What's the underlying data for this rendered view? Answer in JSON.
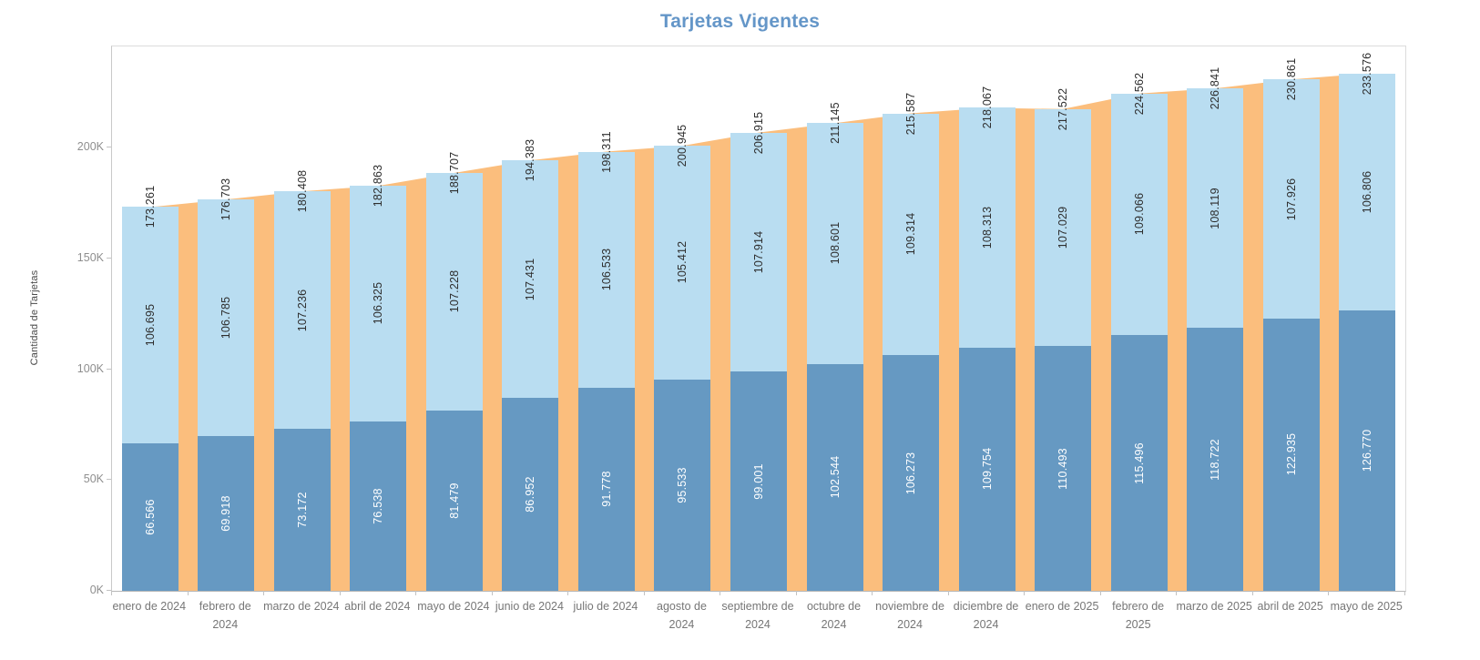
{
  "title": "Tarjetas Vigentes",
  "chart_data": {
    "type": "bar",
    "subtype": "stacked-bars-with-total-area-behind",
    "title": "Tarjetas Vigentes",
    "xlabel": "",
    "ylabel": "Cantidad de Tarjetas",
    "ylim": [
      0,
      245800
    ],
    "grid": false,
    "legend": "none",
    "number_format": "thousands-dot",
    "y_ticks": [
      {
        "label": "0K",
        "value": 0
      },
      {
        "label": "50K",
        "value": 50000
      },
      {
        "label": "100K",
        "value": 100000
      },
      {
        "label": "150K",
        "value": 150000
      },
      {
        "label": "200K",
        "value": 200000
      }
    ],
    "categories": [
      "enero de 2024",
      "febrero de 2024",
      "marzo de 2024",
      "abril de 2024",
      "mayo de 2024",
      "junio de 2024",
      "julio de 2024",
      "agosto de 2024",
      "septiembre de 2024",
      "octubre de 2024",
      "noviembre de 2024",
      "diciembre de 2024",
      "enero de 2025",
      "febrero de 2025",
      "marzo de 2025",
      "abril de 2025",
      "mayo de 2025"
    ],
    "series": [
      {
        "name": "bottom-segment",
        "role": "stacked-bar-bottom",
        "color": "#6699C2",
        "label_color": "#FFFFFF",
        "values": [
          66566,
          69918,
          73172,
          76538,
          81479,
          86952,
          91778,
          95533,
          99001,
          102544,
          106273,
          109754,
          110493,
          115496,
          118722,
          122935,
          126770
        ],
        "labels": [
          "66.566",
          "69.918",
          "73.172",
          "76.538",
          "81.479",
          "86.952",
          "91.778",
          "95.533",
          "99.001",
          "102.544",
          "106.273",
          "109.754",
          "110.493",
          "115.496",
          "118.722",
          "122.935",
          "126.770"
        ]
      },
      {
        "name": "top-segment",
        "role": "stacked-bar-top",
        "color": "#B9DDF1",
        "label_color": "#2E2E2E",
        "values": [
          106695,
          106785,
          107236,
          106325,
          107228,
          107431,
          106533,
          105412,
          107914,
          108601,
          109314,
          108313,
          107029,
          109066,
          108119,
          107926,
          106806
        ],
        "labels": [
          "106.695",
          "106.785",
          "107.236",
          "106.325",
          "107.228",
          "107.431",
          "106.533",
          "105.412",
          "107.914",
          "108.601",
          "109.314",
          "108.313",
          "107.029",
          "109.066",
          "108.119",
          "107.926",
          "106.806"
        ]
      },
      {
        "name": "total",
        "role": "area-behind-bars",
        "color": "#FBBE7D",
        "label_color": "#2E2E2E",
        "values": [
          173261,
          176703,
          180408,
          182863,
          188707,
          194383,
          198311,
          200945,
          206915,
          211145,
          215587,
          218067,
          217522,
          224562,
          226841,
          230861,
          233576
        ],
        "labels": [
          "173.261",
          "176.703",
          "180.408",
          "182.863",
          "188.707",
          "194.383",
          "198.311",
          "200.945",
          "206.915",
          "211.145",
          "215.587",
          "218.067",
          "217.522",
          "224.562",
          "226.841",
          "230.861",
          "233.576"
        ]
      }
    ]
  },
  "colors": {
    "title": "#6496C8",
    "bar_bottom": "#6699C2",
    "bar_top": "#B9DDF1",
    "area": "#FBBE7D",
    "axis_text": "#8E8E8E",
    "category_text": "#767676"
  }
}
